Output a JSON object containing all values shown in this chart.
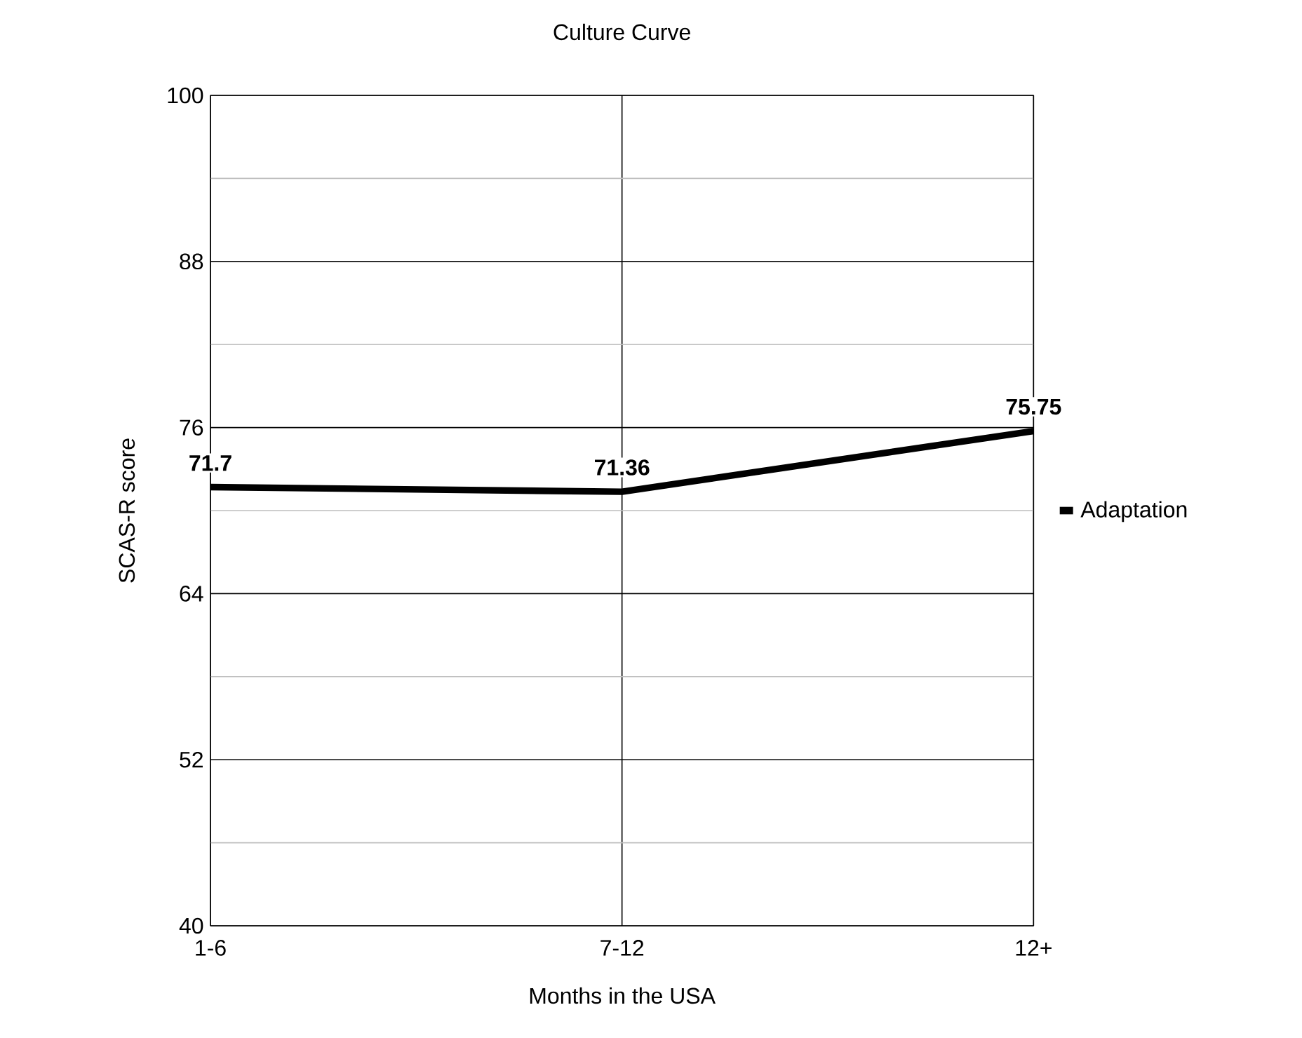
{
  "chart_data": {
    "type": "line",
    "title": "Culture Curve",
    "xlabel": "Months in the USA",
    "ylabel": "SCAS-R score",
    "categories": [
      "1-6",
      "7-12",
      "12+"
    ],
    "series": [
      {
        "name": "Adaptation",
        "color": "#000000",
        "values": [
          71.7,
          71.36,
          75.75
        ]
      }
    ],
    "ylim": [
      40,
      100
    ],
    "yticks": [
      40,
      {
        "value": 46,
        "label": null
      },
      52,
      {
        "value": 58,
        "label": null
      },
      64,
      {
        "value": 70,
        "label": null
      },
      76,
      {
        "value": 82,
        "label": null
      },
      88,
      {
        "value": 94,
        "label": null
      },
      100
    ],
    "grid": true,
    "legend": "right",
    "marker": "none",
    "line_style": "solid",
    "data_labels": true
  }
}
